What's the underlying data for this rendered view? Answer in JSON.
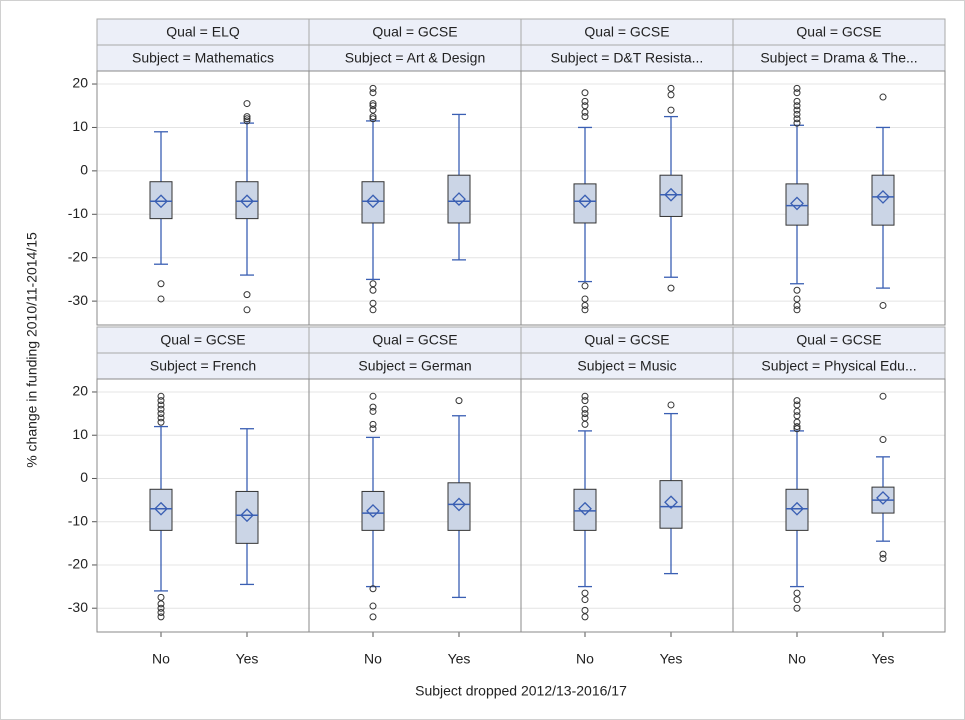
{
  "chart_data": {
    "type": "box",
    "ylabel": "% change in funding 2010/11-2014/15",
    "xlabel": "Subject dropped 2012/13-2016/17",
    "categories": [
      "No",
      "Yes"
    ],
    "ylim": [
      -35.5,
      23
    ],
    "yticks": [
      -30,
      -20,
      -10,
      0,
      10,
      20
    ],
    "grid": true,
    "box_color": "#cbd5e6",
    "line_color": "#3a5fb3",
    "panels": [
      {
        "qual": "Qual = ELQ",
        "subject": "Subject = Mathematics",
        "boxes": [
          {
            "whislo": -21.5,
            "q1": -11,
            "median": -7,
            "q3": -2.5,
            "whishi": 9,
            "mean": -7,
            "outliers": [
              -26,
              -29.5
            ]
          },
          {
            "whislo": -24,
            "q1": -11,
            "median": -7,
            "q3": -2.5,
            "whishi": 11,
            "mean": -7,
            "outliers": [
              15.5,
              12.5,
              12,
              11.5,
              -28.5,
              -32
            ]
          }
        ]
      },
      {
        "qual": "Qual = GCSE",
        "subject": "Subject = Art & Design",
        "boxes": [
          {
            "whislo": -25,
            "q1": -12,
            "median": -7,
            "q3": -2.5,
            "whishi": 11.5,
            "mean": -7,
            "outliers": [
              19,
              18,
              15.5,
              15,
              14,
              12.5,
              12,
              -26,
              -27.5,
              -30.5,
              -32
            ]
          },
          {
            "whislo": -20.5,
            "q1": -12,
            "median": -7,
            "q3": -1,
            "whishi": 13,
            "mean": -6.5,
            "outliers": []
          }
        ]
      },
      {
        "qual": "Qual = GCSE",
        "subject": "Subject = D&T Resista...",
        "boxes": [
          {
            "whislo": -25.5,
            "q1": -12,
            "median": -7,
            "q3": -3,
            "whishi": 10,
            "mean": -7,
            "outliers": [
              18,
              16,
              15,
              13.5,
              12.5,
              -26.5,
              -29.5,
              -31,
              -32
            ]
          },
          {
            "whislo": -24.5,
            "q1": -10.5,
            "median": -5.5,
            "q3": -1,
            "whishi": 12.5,
            "mean": -5.5,
            "outliers": [
              19,
              17.5,
              14,
              -27
            ]
          }
        ]
      },
      {
        "qual": "Qual = GCSE",
        "subject": "Subject = Drama & The...",
        "boxes": [
          {
            "whislo": -26,
            "q1": -12.5,
            "median": -8,
            "q3": -3,
            "whishi": 10.5,
            "mean": -7.5,
            "outliers": [
              19,
              18,
              16,
              15,
              14,
              13,
              12,
              11,
              -27.5,
              -29.5,
              -31,
              -32
            ]
          },
          {
            "whislo": -27,
            "q1": -12.5,
            "median": -6,
            "q3": -1,
            "whishi": 10,
            "mean": -6,
            "outliers": [
              17,
              -31
            ]
          }
        ]
      },
      {
        "qual": "Qual = GCSE",
        "subject": "Subject = French",
        "boxes": [
          {
            "whislo": -26,
            "q1": -12,
            "median": -7,
            "q3": -2.5,
            "whishi": 12,
            "mean": -7,
            "outliers": [
              19,
              18,
              17,
              16,
              15,
              14,
              13,
              -27.5,
              -29,
              -30,
              -31,
              -32
            ]
          },
          {
            "whislo": -24.5,
            "q1": -15,
            "median": -8.5,
            "q3": -3,
            "whishi": 11.5,
            "mean": -8.5,
            "outliers": []
          }
        ]
      },
      {
        "qual": "Qual = GCSE",
        "subject": "Subject = German",
        "boxes": [
          {
            "whislo": -25,
            "q1": -12,
            "median": -8,
            "q3": -3,
            "whishi": 9.5,
            "mean": -7.5,
            "outliers": [
              19,
              16.5,
              15.5,
              12.5,
              11.5,
              -25.5,
              -29.5,
              -32
            ]
          },
          {
            "whislo": -27.5,
            "q1": -12,
            "median": -6,
            "q3": -1,
            "whishi": 14.5,
            "mean": -6,
            "outliers": [
              18
            ]
          }
        ]
      },
      {
        "qual": "Qual = GCSE",
        "subject": "Subject = Music",
        "boxes": [
          {
            "whislo": -25,
            "q1": -12,
            "median": -7.5,
            "q3": -2.5,
            "whishi": 11,
            "mean": -7,
            "outliers": [
              19,
              18,
              16,
              15,
              14,
              12.5,
              -26.5,
              -28,
              -30.5,
              -32
            ]
          },
          {
            "whislo": -22,
            "q1": -11.5,
            "median": -6.5,
            "q3": -0.5,
            "whishi": 15,
            "mean": -5.5,
            "outliers": [
              17
            ]
          }
        ]
      },
      {
        "qual": "Qual = GCSE",
        "subject": "Subject = Physical Edu...",
        "boxes": [
          {
            "whislo": -25,
            "q1": -12,
            "median": -7,
            "q3": -2.5,
            "whishi": 11,
            "mean": -7,
            "outliers": [
              18,
              17,
              15.5,
              14.5,
              13,
              12,
              11.5,
              -26.5,
              -28,
              -30
            ]
          },
          {
            "whislo": -14.5,
            "q1": -8,
            "median": -5,
            "q3": -2,
            "whishi": 5,
            "mean": -4.5,
            "outliers": [
              19,
              9,
              -17.5,
              -18.5
            ]
          }
        ]
      }
    ]
  }
}
